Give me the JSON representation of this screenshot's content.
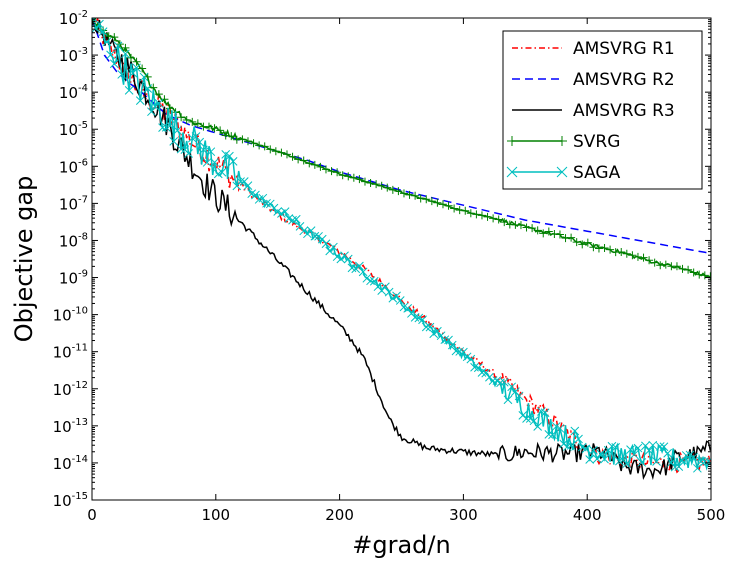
{
  "chart_data": {
    "type": "line",
    "title": "",
    "xlabel": "#grad/n",
    "ylabel": "Objective gap",
    "xlim": [
      0,
      500
    ],
    "ylim_log10": [
      -15,
      -2
    ],
    "yscale": "log",
    "x_ticks": [
      0,
      100,
      200,
      300,
      400,
      500
    ],
    "y_tick_exponents": [
      -2,
      -3,
      -4,
      -5,
      -6,
      -7,
      -8,
      -9,
      -10,
      -11,
      -12,
      -13,
      -14,
      -15
    ],
    "y_tick_base": "10",
    "legend_position": "top-right",
    "series": [
      {
        "name": "AMSVRG R1",
        "color": "#ff0000",
        "style": "dashdot",
        "marker": "none",
        "noise": 0.25,
        "points": [
          [
            0,
            -2.0
          ],
          [
            10,
            -2.6
          ],
          [
            20,
            -3.1
          ],
          [
            30,
            -3.6
          ],
          [
            40,
            -4.0
          ],
          [
            50,
            -4.3
          ],
          [
            60,
            -4.6
          ],
          [
            70,
            -4.9
          ],
          [
            80,
            -5.3
          ],
          [
            100,
            -5.9
          ],
          [
            120,
            -6.5
          ],
          [
            150,
            -7.3
          ],
          [
            175,
            -7.8
          ],
          [
            200,
            -8.3
          ],
          [
            225,
            -8.9
          ],
          [
            250,
            -9.6
          ],
          [
            275,
            -10.3
          ],
          [
            300,
            -11.0
          ],
          [
            325,
            -11.6
          ],
          [
            350,
            -12.3
          ],
          [
            370,
            -12.8
          ],
          [
            390,
            -13.4
          ],
          [
            410,
            -13.8
          ],
          [
            430,
            -13.9
          ],
          [
            450,
            -14.0
          ],
          [
            470,
            -14.0
          ],
          [
            500,
            -14.0
          ]
        ]
      },
      {
        "name": "AMSVRG R2",
        "color": "#0000ff",
        "style": "dashed",
        "marker": "none",
        "noise": 0,
        "points": [
          [
            0,
            -2.0
          ],
          [
            5,
            -2.5
          ],
          [
            10,
            -3.0
          ],
          [
            20,
            -3.45
          ],
          [
            30,
            -3.75
          ],
          [
            40,
            -4.0
          ],
          [
            50,
            -4.3
          ],
          [
            60,
            -4.6
          ],
          [
            80,
            -4.9
          ],
          [
            100,
            -5.1
          ],
          [
            125,
            -5.35
          ],
          [
            150,
            -5.6
          ],
          [
            175,
            -5.85
          ],
          [
            200,
            -6.15
          ],
          [
            225,
            -6.4
          ],
          [
            250,
            -6.65
          ],
          [
            275,
            -6.85
          ],
          [
            300,
            -7.05
          ],
          [
            325,
            -7.25
          ],
          [
            350,
            -7.45
          ],
          [
            375,
            -7.6
          ],
          [
            400,
            -7.75
          ],
          [
            425,
            -7.9
          ],
          [
            450,
            -8.05
          ],
          [
            475,
            -8.2
          ],
          [
            500,
            -8.35
          ]
        ]
      },
      {
        "name": "AMSVRG R3",
        "color": "#000000",
        "style": "solid",
        "marker": "none",
        "noise": 0.25,
        "points": [
          [
            0,
            -2.0
          ],
          [
            10,
            -2.5
          ],
          [
            20,
            -3.0
          ],
          [
            30,
            -3.4
          ],
          [
            40,
            -3.8
          ],
          [
            50,
            -4.3
          ],
          [
            60,
            -4.8
          ],
          [
            70,
            -5.4
          ],
          [
            80,
            -5.9
          ],
          [
            90,
            -6.4
          ],
          [
            100,
            -6.8
          ],
          [
            120,
            -7.5
          ],
          [
            140,
            -8.2
          ],
          [
            160,
            -8.9
          ],
          [
            180,
            -9.6
          ],
          [
            200,
            -10.3
          ],
          [
            210,
            -10.7
          ],
          [
            220,
            -11.2
          ],
          [
            230,
            -12.0
          ],
          [
            240,
            -12.8
          ],
          [
            250,
            -13.3
          ],
          [
            270,
            -13.6
          ],
          [
            300,
            -13.7
          ],
          [
            330,
            -13.8
          ],
          [
            350,
            -13.7
          ],
          [
            380,
            -13.75
          ],
          [
            410,
            -13.7
          ],
          [
            430,
            -14.1
          ],
          [
            450,
            -14.2
          ],
          [
            465,
            -14.1
          ],
          [
            470,
            -13.9
          ],
          [
            490,
            -13.75
          ],
          [
            500,
            -13.6
          ]
        ]
      },
      {
        "name": "SVRG",
        "color": "#008000",
        "style": "solid",
        "marker": "plus",
        "noise": 0.05,
        "points": [
          [
            0,
            -2.0
          ],
          [
            10,
            -2.4
          ],
          [
            20,
            -2.6
          ],
          [
            30,
            -3.0
          ],
          [
            40,
            -3.4
          ],
          [
            50,
            -3.9
          ],
          [
            60,
            -4.3
          ],
          [
            80,
            -4.8
          ],
          [
            100,
            -5.0
          ],
          [
            125,
            -5.3
          ],
          [
            150,
            -5.6
          ],
          [
            175,
            -5.9
          ],
          [
            200,
            -6.2
          ],
          [
            225,
            -6.45
          ],
          [
            250,
            -6.7
          ],
          [
            275,
            -6.95
          ],
          [
            300,
            -7.2
          ],
          [
            325,
            -7.4
          ],
          [
            350,
            -7.65
          ],
          [
            375,
            -7.85
          ],
          [
            400,
            -8.1
          ],
          [
            425,
            -8.3
          ],
          [
            450,
            -8.55
          ],
          [
            475,
            -8.75
          ],
          [
            500,
            -9.0
          ]
        ]
      },
      {
        "name": "SAGA",
        "color": "#00bfbf",
        "style": "solid",
        "marker": "x",
        "noise": 0.3,
        "points": [
          [
            0,
            -2.0
          ],
          [
            10,
            -2.6
          ],
          [
            20,
            -3.1
          ],
          [
            30,
            -3.5
          ],
          [
            40,
            -3.9
          ],
          [
            50,
            -4.3
          ],
          [
            60,
            -4.7
          ],
          [
            70,
            -5.0
          ],
          [
            80,
            -5.3
          ],
          [
            90,
            -5.6
          ],
          [
            100,
            -5.9
          ],
          [
            120,
            -6.4
          ],
          [
            140,
            -7.0
          ],
          [
            160,
            -7.4
          ],
          [
            180,
            -7.9
          ],
          [
            200,
            -8.4
          ],
          [
            225,
            -9.0
          ],
          [
            250,
            -9.7
          ],
          [
            275,
            -10.4
          ],
          [
            300,
            -11.1
          ],
          [
            325,
            -11.8
          ],
          [
            350,
            -12.5
          ],
          [
            375,
            -13.1
          ],
          [
            400,
            -13.6
          ],
          [
            425,
            -13.8
          ],
          [
            450,
            -13.8
          ],
          [
            475,
            -13.9
          ],
          [
            500,
            -13.9
          ]
        ]
      }
    ]
  }
}
